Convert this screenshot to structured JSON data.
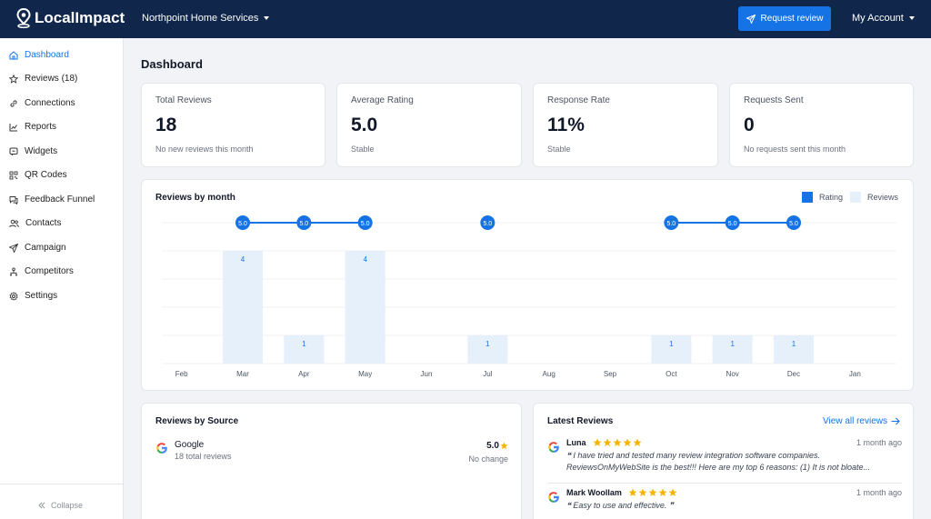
{
  "app": {
    "name": "LocalImpact"
  },
  "header": {
    "org": "Northpoint Home Services",
    "request_button": "Request review",
    "account": "My Account"
  },
  "sidebar": {
    "items": [
      {
        "label": "Dashboard",
        "icon": "home-icon",
        "active": true
      },
      {
        "label": "Reviews (18)",
        "icon": "star-icon"
      },
      {
        "label": "Connections",
        "icon": "link-icon"
      },
      {
        "label": "Reports",
        "icon": "chart-icon"
      },
      {
        "label": "Widgets",
        "icon": "widget-icon"
      },
      {
        "label": "QR Codes",
        "icon": "qr-code-icon"
      },
      {
        "label": "Feedback Funnel",
        "icon": "feedback-icon"
      },
      {
        "label": "Contacts",
        "icon": "contacts-icon"
      },
      {
        "label": "Campaign",
        "icon": "send-icon"
      },
      {
        "label": "Competitors",
        "icon": "competitors-icon"
      },
      {
        "label": "Settings",
        "icon": "gear-icon"
      }
    ],
    "collapse": "Collapse"
  },
  "page_title": "Dashboard",
  "stats": [
    {
      "label": "Total Reviews",
      "value": "18",
      "sub": "No new reviews this month"
    },
    {
      "label": "Average Rating",
      "value": "5.0",
      "sub": "Stable"
    },
    {
      "label": "Response Rate",
      "value": "11%",
      "sub": "Stable"
    },
    {
      "label": "Requests Sent",
      "value": "0",
      "sub": "No requests sent this month"
    }
  ],
  "chart": {
    "title": "Reviews by month",
    "legend": {
      "rating": "Rating",
      "reviews": "Reviews"
    }
  },
  "chart_data": {
    "type": "bar",
    "title": "Reviews by month",
    "categories": [
      "Feb",
      "Mar",
      "Apr",
      "May",
      "Jun",
      "Jul",
      "Aug",
      "Sep",
      "Oct",
      "Nov",
      "Dec",
      "Jan"
    ],
    "series": [
      {
        "name": "Reviews",
        "type": "bar",
        "values": [
          0,
          4,
          1,
          4,
          0,
          1,
          0,
          0,
          1,
          1,
          1,
          0
        ]
      },
      {
        "name": "Rating",
        "type": "line",
        "values": [
          null,
          5.0,
          5.0,
          5.0,
          null,
          5.0,
          null,
          null,
          5.0,
          5.0,
          5.0,
          null
        ]
      }
    ],
    "ylim": [
      0,
      5
    ],
    "legend_position": "top-right",
    "grid": true,
    "colors": {
      "rating": "#1673e6",
      "reviews": "#e6f0fb"
    }
  },
  "sources": {
    "title": "Reviews by Source",
    "items": [
      {
        "name": "Google",
        "count": "18 total reviews",
        "rating": "5.0",
        "change": "No change",
        "icon": "google-icon"
      }
    ]
  },
  "latest": {
    "title": "Latest Reviews",
    "view_all": "View all reviews",
    "reviews": [
      {
        "name": "Luna",
        "stars": 5,
        "time": "1 month ago",
        "text": "❝ I have tried and tested many review integration software companies. ReviewsOnMyWebSite is the best!!! Here are my top 6 reasons: (1) It is not bloate..."
      },
      {
        "name": "Mark Woollam",
        "stars": 5,
        "time": "1 month ago",
        "text": "❝ Easy to use and effective. ❞"
      }
    ]
  }
}
